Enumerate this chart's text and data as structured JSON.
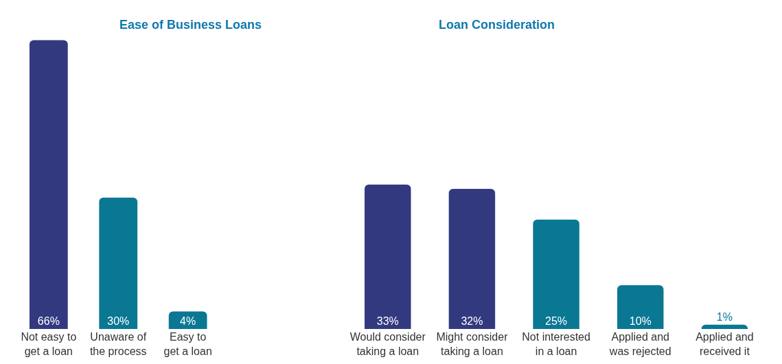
{
  "chart_data": [
    {
      "type": "bar",
      "title": "Ease of Business Loans",
      "categories": [
        "Not easy to\nget a loan",
        "Unaware of\nthe process",
        "Easy to\nget a loan"
      ],
      "values": [
        66,
        30,
        4
      ],
      "colors": [
        "#33397f",
        "#0a7793",
        "#0a7793"
      ],
      "data_labels": true,
      "value_labels": [
        "66%",
        "30%",
        "4%"
      ],
      "legend": false
    },
    {
      "type": "bar",
      "title": "Loan Consideration",
      "categories": [
        "Would consider\ntaking a loan",
        "Might consider\ntaking a loan",
        "Not interested\nin a loan",
        "Applied and\nwas rejected",
        "Applied and\nreceived it"
      ],
      "values": [
        33,
        32,
        25,
        10,
        1
      ],
      "colors": [
        "#33397f",
        "#33397f",
        "#0a7793",
        "#0a7793",
        "#0a7793"
      ],
      "data_labels": true,
      "value_labels": [
        "33%",
        "32%",
        "25%",
        "10%",
        "1%"
      ],
      "legend": false
    }
  ]
}
